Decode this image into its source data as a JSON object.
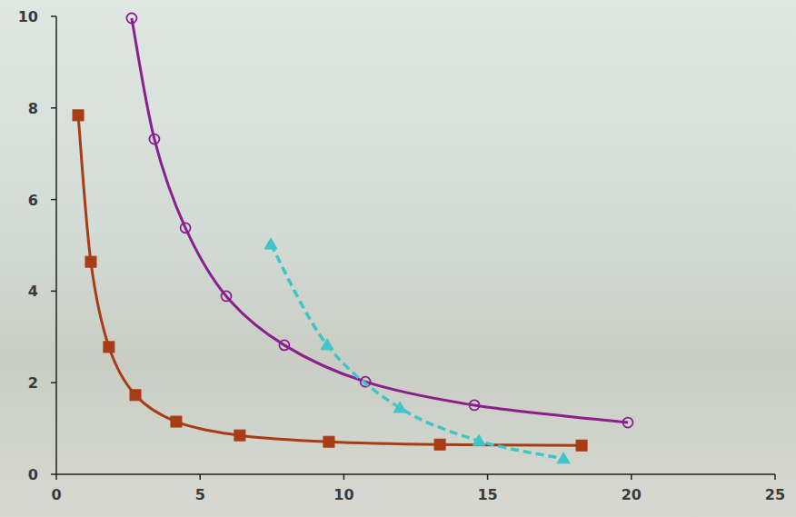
{
  "chart_data": {
    "type": "line",
    "xlim": [
      0,
      25
    ],
    "xticks": [
      0,
      5,
      10,
      15,
      20,
      25
    ],
    "ylim": [
      0,
      10
    ],
    "yticks": [
      0,
      2,
      4,
      6,
      8,
      10
    ],
    "grid": false,
    "series": [
      {
        "color": "#a83c14",
        "marker": "square",
        "line_style": "solid",
        "x": [
          0.76,
          1.2,
          1.83,
          2.75,
          4.17,
          6.38,
          9.48,
          13.34,
          18.27
        ],
        "values": [
          7.84,
          4.64,
          2.78,
          1.73,
          1.15,
          0.85,
          0.71,
          0.65,
          0.63
        ]
      },
      {
        "color": "#8a1f8e",
        "marker": "circle-open",
        "line_style": "solid",
        "x": [
          2.62,
          3.41,
          4.49,
          5.91,
          7.93,
          10.75,
          14.54,
          19.88
        ],
        "values": [
          9.96,
          7.32,
          5.38,
          3.89,
          2.82,
          2.02,
          1.51,
          1.13
        ]
      },
      {
        "color": "#3ec6c8",
        "marker": "triangle",
        "line_style": "dashed",
        "x": [
          7.46,
          9.42,
          11.95,
          14.7,
          17.64
        ],
        "values": [
          5.02,
          2.82,
          1.45,
          0.73,
          0.34
        ]
      }
    ]
  }
}
